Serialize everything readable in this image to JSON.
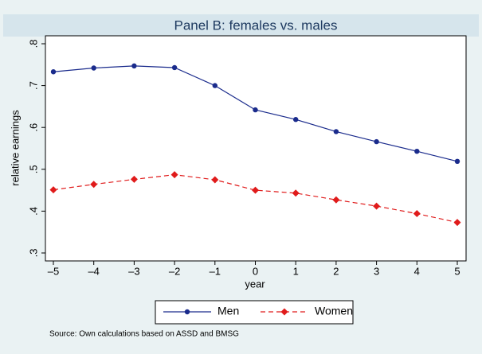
{
  "chart_data": {
    "type": "line",
    "title": "Panel B: females vs. males",
    "x_label": "year",
    "y_label": "relative earnings",
    "x": [
      -5,
      -4,
      -3,
      -2,
      -1,
      0,
      1,
      2,
      3,
      4,
      5
    ],
    "series": [
      {
        "name": "Men",
        "color": "#1a2b8c",
        "line_style": "solid",
        "marker": "circle",
        "values": [
          0.733,
          0.742,
          0.747,
          0.743,
          0.7,
          0.642,
          0.619,
          0.59,
          0.566,
          0.543,
          0.519
        ]
      },
      {
        "name": "Women",
        "color": "#e01b1b",
        "line_style": "dashed",
        "marker": "diamond",
        "values": [
          0.451,
          0.464,
          0.476,
          0.487,
          0.475,
          0.45,
          0.443,
          0.427,
          0.412,
          0.394,
          0.373
        ]
      }
    ],
    "xlim": [
      -5,
      5
    ],
    "ylim": [
      0.3,
      0.8
    ],
    "xticks": [
      {
        "value": -5,
        "label": "–5"
      },
      {
        "value": -4,
        "label": "–4"
      },
      {
        "value": -3,
        "label": "–3"
      },
      {
        "value": -2,
        "label": "–2"
      },
      {
        "value": -1,
        "label": "–1"
      },
      0,
      1,
      2,
      3,
      4,
      5
    ],
    "yticks": [
      {
        "value": 0.3,
        "label": ".3"
      },
      {
        "value": 0.4,
        "label": ".4"
      },
      {
        "value": 0.5,
        "label": ".5"
      },
      {
        "value": 0.6,
        "label": ".6"
      },
      {
        "value": 0.7,
        "label": ".7"
      },
      {
        "value": 0.8,
        "label": ".8"
      }
    ],
    "grid": false,
    "legend": "bottom",
    "note": "Source: Own calculations based on ASSD and BMSG"
  }
}
